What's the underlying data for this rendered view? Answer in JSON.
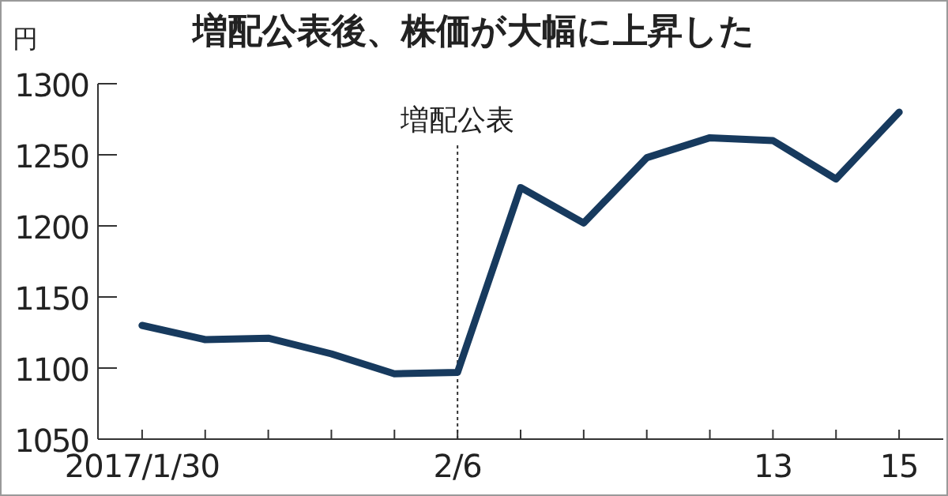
{
  "chart_data": {
    "type": "line",
    "title": "増配公表後、株価が大幅に上昇した",
    "ylabel": "円",
    "categories": [
      "2017/1/30",
      null,
      null,
      null,
      null,
      "2/6",
      null,
      null,
      null,
      null,
      "13",
      null,
      "15"
    ],
    "series": [
      {
        "color": "#173a5e",
        "values": [
          1130,
          1120,
          1121,
          1110,
          1096,
          1097,
          1227,
          1202,
          1248,
          1262,
          1260,
          1233,
          1280
        ]
      }
    ],
    "ylim": [
      1050,
      1300
    ],
    "yticks": [
      1050,
      1100,
      1150,
      1200,
      1250,
      1300
    ],
    "ref_lines": [
      {
        "axis": "x",
        "value": "2/6",
        "label": "増配公表",
        "line_style": "dotted",
        "color": "#333333"
      }
    ],
    "grid": false
  }
}
